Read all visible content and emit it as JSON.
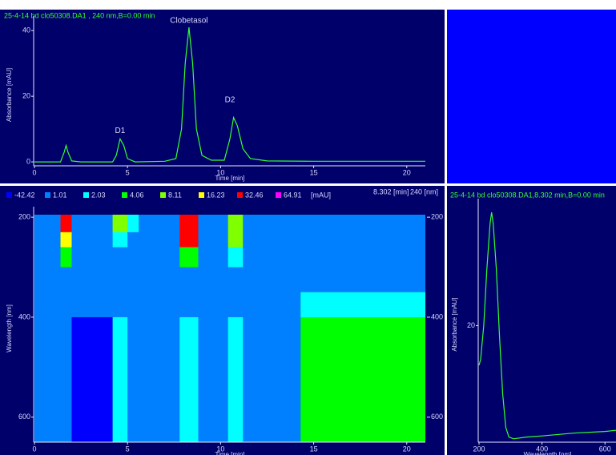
{
  "chart_data": [
    {
      "type": "line",
      "title": "25-4-14 bd clo50308.DA1 , 240 nm,B=0.00 min",
      "x_label": "Time [min]",
      "y_label": "Absorbance [mAU]",
      "x": [
        0,
        1.4,
        1.6,
        1.7,
        1.8,
        2.0,
        2.5,
        4.2,
        4.4,
        4.6,
        4.8,
        5.0,
        5.4,
        7.0,
        7.6,
        7.9,
        8.1,
        8.3,
        8.5,
        8.7,
        9.0,
        9.5,
        10.2,
        10.5,
        10.7,
        10.9,
        11.2,
        11.6,
        12.5,
        15,
        21
      ],
      "values": [
        0,
        0,
        3,
        5,
        3,
        0.3,
        0,
        0,
        2,
        7,
        5,
        1,
        0,
        0.2,
        1,
        10,
        30,
        41,
        30,
        10,
        2,
        0.5,
        0.5,
        7,
        13.5,
        11,
        4,
        1,
        0.3,
        0.2,
        0.2
      ],
      "color": "#33ff33",
      "xlim": [
        0,
        21
      ],
      "ylim": [
        -1.2,
        42
      ],
      "xticks": [
        0,
        5,
        10,
        15,
        20
      ],
      "yticks": [
        0,
        20,
        40
      ],
      "annotations": [
        {
          "text": "D1",
          "x": 4.6,
          "y": 9.5
        },
        {
          "text": "Clobetasol",
          "x": 8.3,
          "y": 43
        },
        {
          "text": "D2",
          "x": 10.5,
          "y": 18.8
        }
      ]
    },
    {
      "type": "heatmap",
      "legend_levels": [
        {
          "value": -42.42,
          "color": "#0000ff"
        },
        {
          "value": 1.01,
          "color": "#0080ff"
        },
        {
          "value": 2.03,
          "color": "#00ffff"
        },
        {
          "value": 4.06,
          "color": "#00ff00"
        },
        {
          "value": 8.11,
          "color": "#80ff00"
        },
        {
          "value": 16.23,
          "color": "#ffff00"
        },
        {
          "value": 32.46,
          "color": "#ff0000"
        },
        {
          "value": 64.91,
          "color": "#ff00ff"
        }
      ],
      "legend_unit": "[mAU]",
      "cursor_time": "8.302 [min]",
      "cursor_wavelength": "240 [nm]",
      "x_label": "Time [min]",
      "y_label": "Wavelength [nm]",
      "x_bins": [
        0,
        1.4,
        2.0,
        4.2,
        5.0,
        5.6,
        7.8,
        8.8,
        10.4,
        11.2,
        14.3,
        21
      ],
      "y_bins": [
        195,
        230,
        260,
        300,
        350,
        400,
        650
      ],
      "values": [
        [
          1.5,
          40,
          1.5,
          9,
          2.5,
          1.5,
          40,
          1.5,
          12,
          1.5,
          1.5
        ],
        [
          1.5,
          20,
          1.5,
          3,
          1.5,
          1.5,
          35,
          1.5,
          9,
          1.5,
          1.5
        ],
        [
          1.5,
          5,
          1.5,
          1.5,
          1.5,
          1.5,
          5,
          1.5,
          3,
          1.5,
          1.5
        ],
        [
          1.5,
          1.5,
          1.5,
          1.5,
          1.5,
          1.5,
          1.5,
          1.5,
          1.5,
          1.5,
          1.5
        ],
        [
          1.5,
          1.5,
          1.5,
          1.5,
          1.5,
          1.5,
          1.5,
          1.5,
          1.5,
          1.5,
          3
        ],
        [
          1.5,
          1.5,
          0.5,
          2.5,
          1.5,
          1.5,
          2.5,
          1.5,
          2.5,
          1.5,
          5
        ]
      ],
      "xlim": [
        0,
        21
      ],
      "ylim": [
        195,
        650
      ],
      "y_inverted": true,
      "xticks": [
        0,
        5,
        10,
        15,
        20
      ],
      "yticks": [
        200,
        400,
        600
      ]
    },
    {
      "type": "line",
      "title": "25-4-14 bd clo50308.DA1,8.302 min,B=0.00 min",
      "x_label": "Wavelength [nm]",
      "y_label": "Absorbance [mAU]",
      "x": [
        200,
        205,
        215,
        225,
        235,
        240,
        245,
        255,
        265,
        275,
        285,
        295,
        310,
        350,
        400,
        500,
        600,
        635
      ],
      "values": [
        13,
        14,
        20,
        30,
        38,
        40,
        38,
        30,
        18,
        8,
        2,
        0.3,
        0,
        0.3,
        0.5,
        1,
        1.3,
        1.5
      ],
      "color": "#33ff33",
      "xlim": [
        200,
        635
      ],
      "ylim": [
        -0.6,
        41
      ],
      "xticks": [
        200,
        400,
        600
      ],
      "yticks": [
        20
      ]
    }
  ]
}
